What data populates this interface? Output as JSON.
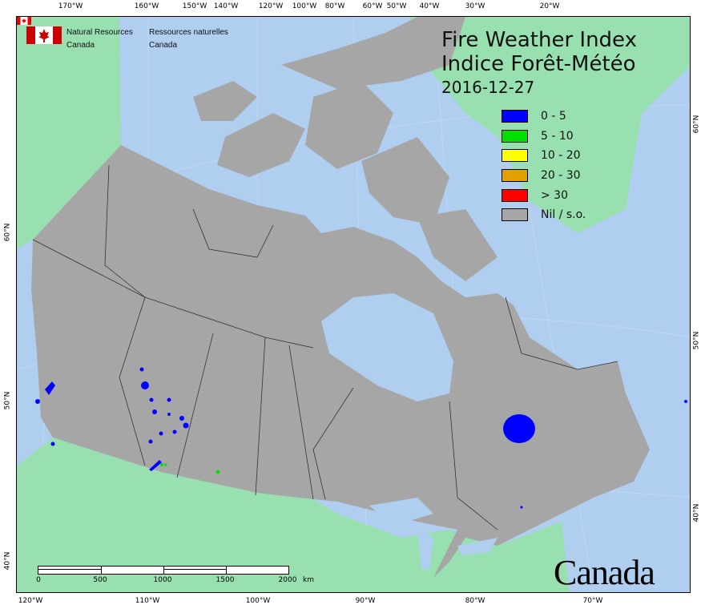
{
  "agency": {
    "name_en": "Natural Resources\nCanada",
    "name_fr": "Ressources naturelles\nCanada",
    "line_en1": "Natural Resources",
    "line_en2": "Canada",
    "line_fr1": "Ressources naturelles",
    "line_fr2": "Canada"
  },
  "title": {
    "en": "Fire Weather Index",
    "fr": "Indice Forêt-Météo",
    "date": "2016-12-27"
  },
  "legend": [
    {
      "label": "0 - 5",
      "color": "#0000ff"
    },
    {
      "label": "5 - 10",
      "color": "#00e000"
    },
    {
      "label": "10 - 20",
      "color": "#ffff00"
    },
    {
      "label": "20 - 30",
      "color": "#e0a000"
    },
    {
      "label": "> 30",
      "color": "#ff0000"
    },
    {
      "label": "Nil / s.o.",
      "color": "#a6a6a6"
    }
  ],
  "graticule": {
    "top": [
      "170°W",
      "160°W",
      "150°W",
      "140°W",
      "120°W",
      "100°W",
      "80°W",
      "60°W",
      "50°W",
      "40°W",
      "30°W",
      "20°W"
    ],
    "bottom": [
      "120°W",
      "110°W",
      "100°W",
      "90°W",
      "80°W",
      "70°W"
    ],
    "left": [
      "60°N",
      "50°N",
      "40°N"
    ],
    "right": [
      "60°N",
      "50°N",
      "40°N"
    ]
  },
  "scale": {
    "ticks": [
      "0",
      "500",
      "1000",
      "1500",
      "2000"
    ],
    "unit": "km"
  },
  "wordmark": "Canada",
  "colors": {
    "ocean": "#b0cff0",
    "land_other": "#98e0b0",
    "canada_nil": "#a6a6a6",
    "fwi_low": "#0000ff",
    "fwi_5_10": "#00e000"
  }
}
